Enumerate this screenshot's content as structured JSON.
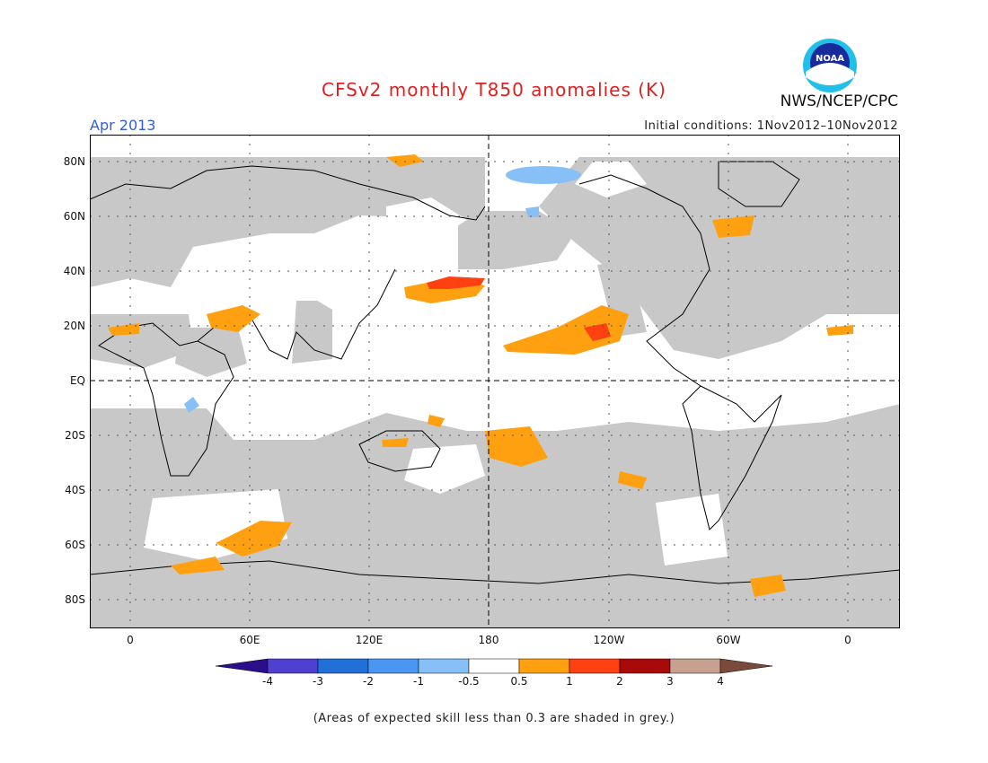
{
  "header": {
    "title": "CFSv2 monthly T850 anomalies (K)",
    "month": "Apr 2013",
    "initial_conditions": "Initial conditions: 1Nov2012–10Nov2012",
    "organization": "NWS/NCEP/CPC",
    "logo_text": "NOAA"
  },
  "axes": {
    "lat_labels": [
      "80N",
      "60N",
      "40N",
      "20N",
      "EQ",
      "20S",
      "40S",
      "60S",
      "80S"
    ],
    "lon_labels": [
      "0",
      "60E",
      "120E",
      "180",
      "120W",
      "60W",
      "0"
    ]
  },
  "colorbar": {
    "labels": [
      "-4",
      "-3",
      "-2",
      "-1",
      "-0.5",
      "0.5",
      "1",
      "2",
      "3",
      "4"
    ],
    "colors": [
      "#2a0e8c",
      "#5040d0",
      "#2070d8",
      "#4a96f0",
      "#86c0f6",
      "#ffffff",
      "#ffa010",
      "#ff4010",
      "#a80a0a",
      "#c8a090",
      "#7a4a3a"
    ]
  },
  "map_colors": {
    "grey": "#c8c8c8",
    "orange": "#ffa010",
    "red": "#ff4010",
    "lightblue": "#86c0f6",
    "blue": "#4a96f0"
  },
  "footnote": "(Areas of expected skill less than 0.3 are shaded in grey.)"
}
